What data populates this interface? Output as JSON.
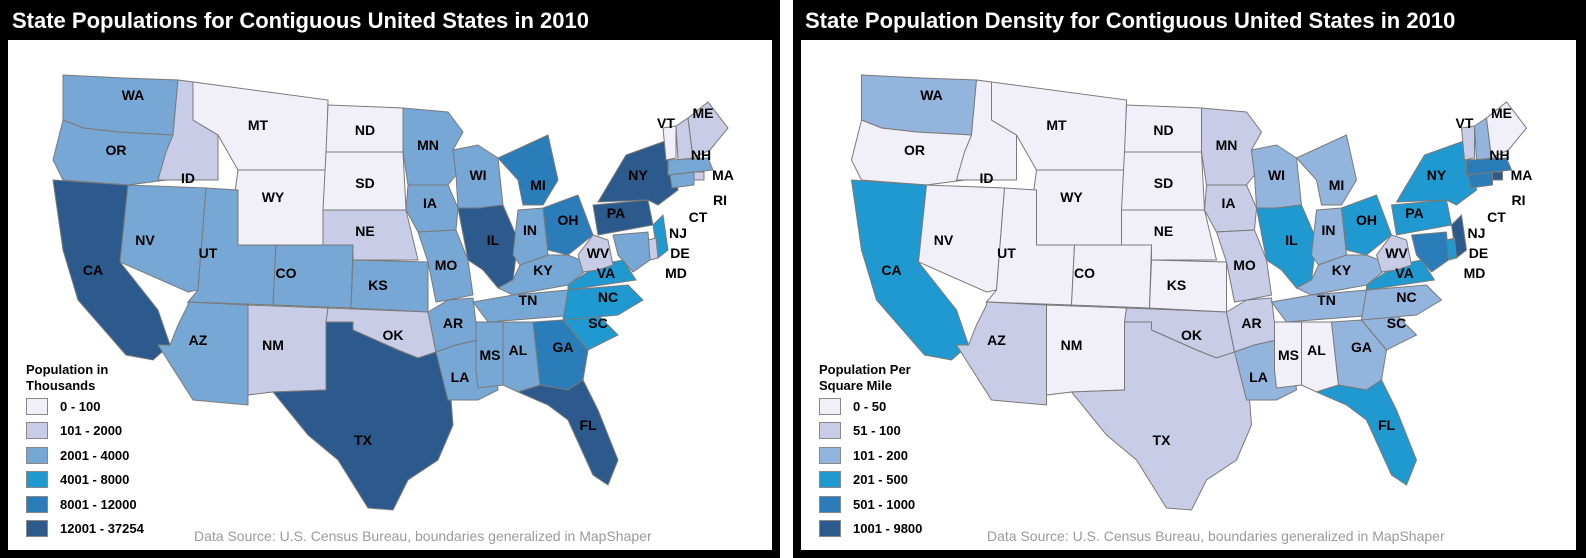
{
  "maps": [
    {
      "title": "State Populations for Contiguous United States in 2010",
      "legend": {
        "title": "Population in Thousands",
        "classes": [
          {
            "label": "0 - 100",
            "color": "#f1f0f8"
          },
          {
            "label": "101 - 2000",
            "color": "#c9cce6"
          },
          {
            "label": "2001 - 4000",
            "color": "#77a7d4"
          },
          {
            "label": "4001 - 8000",
            "color": "#1f99cf"
          },
          {
            "label": "8001 - 12000",
            "color": "#2a7db8"
          },
          {
            "label": "12001 - 37254",
            "color": "#2c5a8c"
          }
        ]
      },
      "source": "Data Source: U.S. Census Bureau, boundaries generalized in MapShaper",
      "states": {
        "WA": 2,
        "OR": 2,
        "CA": 5,
        "ID": 1,
        "NV": 2,
        "MT": 0,
        "WY": 0,
        "UT": 2,
        "AZ": 2,
        "CO": 2,
        "NM": 1,
        "ND": 0,
        "SD": 0,
        "NE": 1,
        "KS": 2,
        "OK": 1,
        "TX": 5,
        "MN": 2,
        "IA": 2,
        "MO": 2,
        "AR": 2,
        "LA": 2,
        "WI": 2,
        "IL": 5,
        "MI": 4,
        "IN": 2,
        "OH": 4,
        "KY": 2,
        "TN": 2,
        "MS": 2,
        "AL": 2,
        "GA": 4,
        "FL": 5,
        "SC": 3,
        "NC": 3,
        "VA": 3,
        "WV": 1,
        "PA": 5,
        "NY": 5,
        "VT": 0,
        "NH": 1,
        "ME": 1,
        "MA": 2,
        "RI": 1,
        "CT": 2,
        "NJ": 3,
        "DE": 1,
        "MD": 2
      }
    },
    {
      "title": "State Population Density for Contiguous United States in 2010",
      "legend": {
        "title": "Population Per Square Mile",
        "classes": [
          {
            "label": "0 - 50",
            "color": "#f1f0f8"
          },
          {
            "label": "51 - 100",
            "color": "#c9cce6"
          },
          {
            "label": "101 - 200",
            "color": "#93b4dc"
          },
          {
            "label": "201 - 500",
            "color": "#1f99cf"
          },
          {
            "label": "501 - 1000",
            "color": "#2a7db8"
          },
          {
            "label": "1001 - 9800",
            "color": "#2c5a8c"
          }
        ]
      },
      "source": "Data Source: U.S. Census Bureau, boundaries generalized in MapShaper",
      "states": {
        "WA": 2,
        "OR": 0,
        "CA": 3,
        "ID": 0,
        "NV": 0,
        "MT": 0,
        "WY": 0,
        "UT": 0,
        "AZ": 1,
        "CO": 0,
        "NM": 0,
        "ND": 0,
        "SD": 0,
        "NE": 0,
        "KS": 0,
        "OK": 1,
        "TX": 1,
        "MN": 1,
        "IA": 1,
        "MO": 1,
        "AR": 1,
        "LA": 2,
        "WI": 2,
        "IL": 3,
        "MI": 2,
        "IN": 2,
        "OH": 3,
        "KY": 2,
        "TN": 2,
        "MS": 0,
        "AL": 0,
        "GA": 2,
        "FL": 3,
        "SC": 2,
        "NC": 2,
        "VA": 3,
        "WV": 1,
        "PA": 3,
        "NY": 3,
        "VT": 1,
        "NH": 2,
        "ME": 0,
        "MA": 4,
        "RI": 5,
        "CT": 4,
        "NJ": 5,
        "DE": 3,
        "MD": 4
      }
    }
  ]
}
